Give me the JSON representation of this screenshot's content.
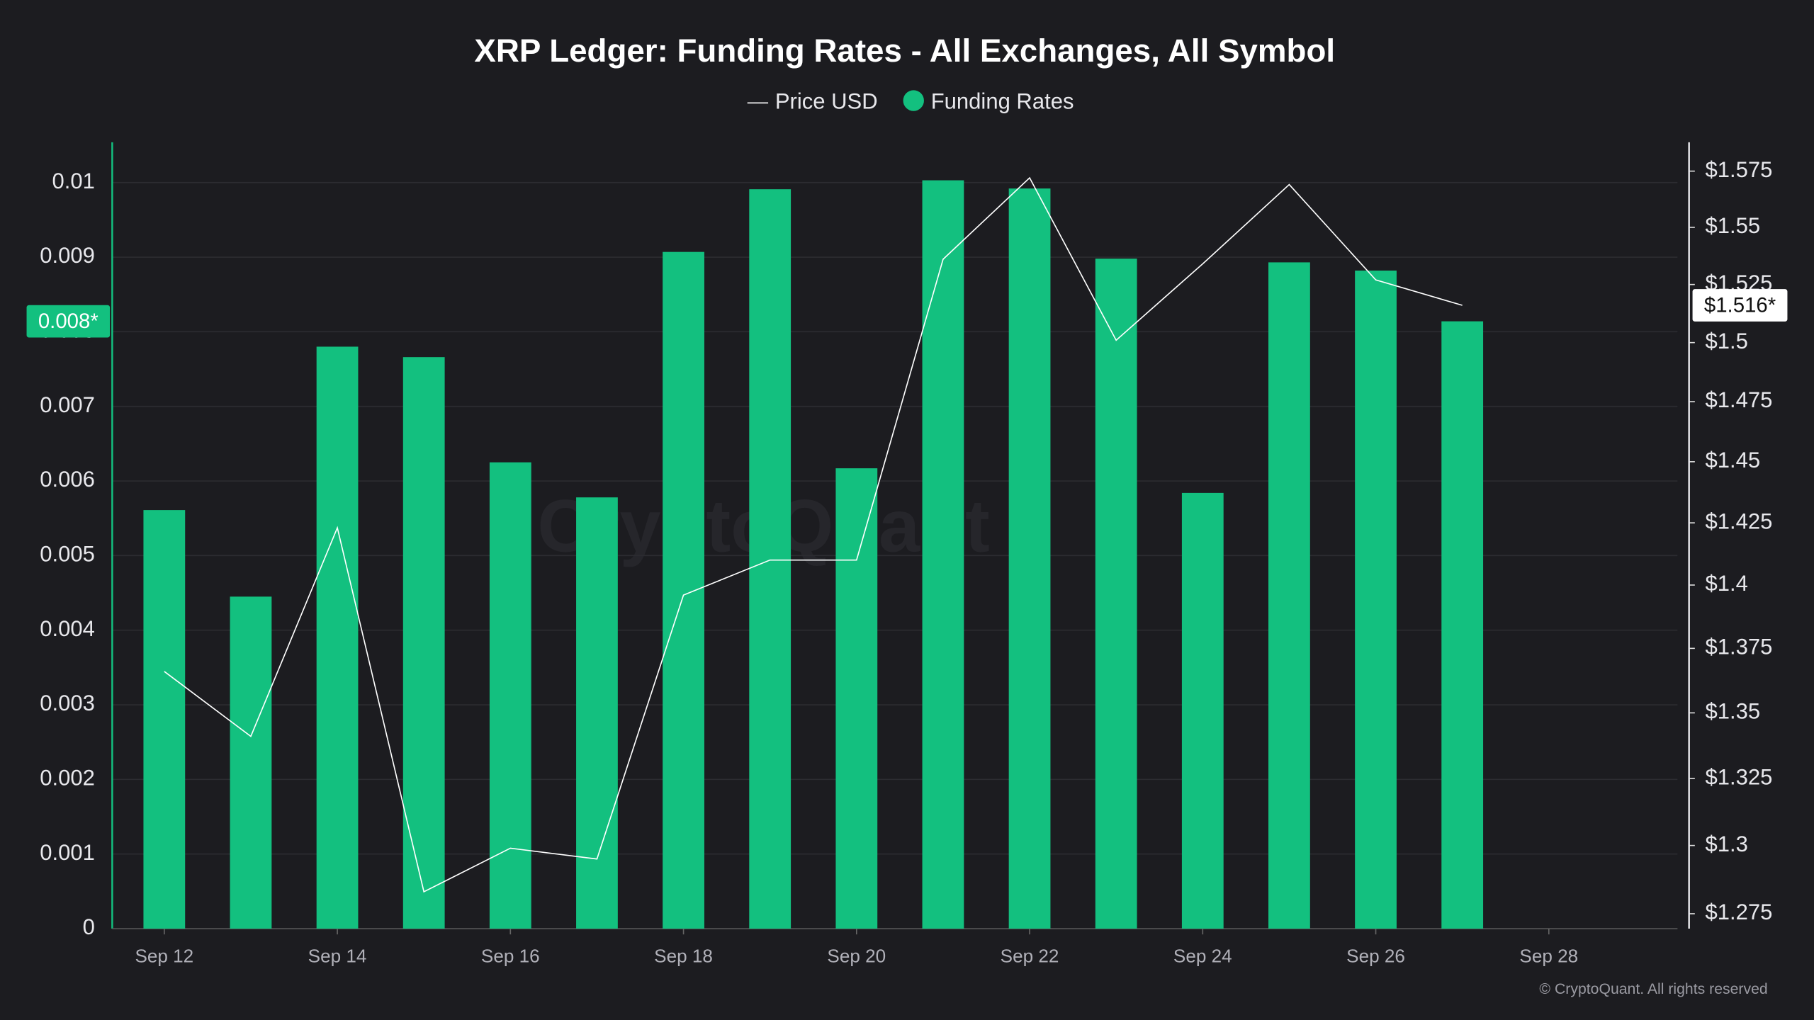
{
  "chart_data": {
    "type": "bar",
    "title": "XRP Ledger: Funding Rates - All Exchanges, All Symbol",
    "watermark": "CryptoQuant",
    "copyright": "© CryptoQuant. All rights reserved",
    "categories": [
      "Sep 12",
      null,
      "Sep 14",
      null,
      "Sep 16",
      null,
      "Sep 18",
      null,
      "Sep 20",
      null,
      "Sep 22",
      null,
      "Sep 24",
      null,
      "Sep 26",
      null,
      "Sep 28"
    ],
    "series": [
      {
        "name": "Price USD",
        "type": "line",
        "axis": "y2",
        "color": "#ffffff",
        "values": [
          1.366,
          1.341,
          1.423,
          1.283,
          1.299,
          1.295,
          1.396,
          1.41,
          1.41,
          1.536,
          1.572,
          1.501,
          1.534,
          1.569,
          1.527,
          1.516,
          null
        ],
        "current_label": "$1.516*"
      },
      {
        "name": "Funding Rates",
        "type": "bar",
        "color": "#13c07f",
        "values": [
          0.00561,
          0.00445,
          0.0078,
          0.00766,
          0.00625,
          0.00578,
          0.00907,
          0.00991,
          0.00617,
          0.01003,
          0.00992,
          0.00898,
          0.00584,
          0.00893,
          0.00882,
          0.00814,
          null
        ],
        "current_label": "0.008*"
      }
    ],
    "ylim": [
      0,
      0.01054
    ],
    "yticks": [
      0,
      0.001,
      0.002,
      0.003,
      0.004,
      0.005,
      0.006,
      0.007,
      0.008,
      0.009,
      0.01
    ],
    "y2lim": [
      1.2696,
      1.588
    ],
    "y2log": true,
    "y2ticks": [
      {
        "value": 1.275,
        "label": "$1.275"
      },
      {
        "value": 1.3,
        "label": "$1.3"
      },
      {
        "value": 1.325,
        "label": "$1.325"
      },
      {
        "value": 1.35,
        "label": "$1.35"
      },
      {
        "value": 1.375,
        "label": "$1.375"
      },
      {
        "value": 1.4,
        "label": "$1.4"
      },
      {
        "value": 1.425,
        "label": "$1.425"
      },
      {
        "value": 1.45,
        "label": "$1.45"
      },
      {
        "value": 1.475,
        "label": "$1.475"
      },
      {
        "value": 1.5,
        "label": "$1.5"
      },
      {
        "value": 1.525,
        "label": "$1.525"
      },
      {
        "value": 1.55,
        "label": "$1.55"
      },
      {
        "value": 1.575,
        "label": "$1.575"
      }
    ],
    "grid": true
  }
}
